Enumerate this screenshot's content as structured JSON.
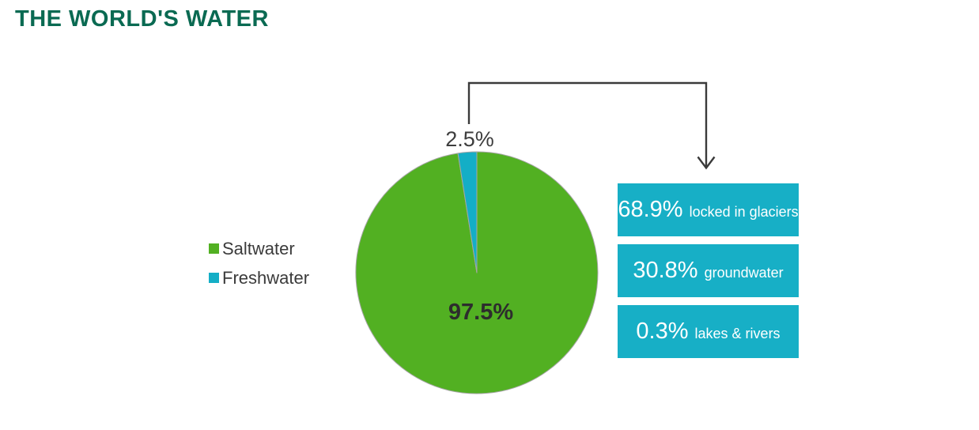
{
  "title": {
    "text": "THE WORLD'S WATER",
    "color": "#0a6a52"
  },
  "chart_data": {
    "type": "pie",
    "title": "THE WORLD'S WATER",
    "series": [
      {
        "name": "Saltwater",
        "value": 97.5,
        "data_label": "97.5%",
        "color": "#52b022"
      },
      {
        "name": "Freshwater",
        "value": 2.5,
        "data_label": "2.5%",
        "color": "#14aec6"
      }
    ],
    "start_angle_deg": 0,
    "direction": "clockwise",
    "legend": {
      "position": "left",
      "entries": [
        "Saltwater",
        "Freshwater"
      ]
    },
    "outline_color": "#a6a6a6",
    "breakdown": {
      "parent": "Freshwater",
      "box_color": "#17afc6",
      "text_color": "#ffffff",
      "items": [
        {
          "pct": "68.9%",
          "label": "locked in glaciers"
        },
        {
          "pct": "30.8%",
          "label": "groundwater"
        },
        {
          "pct": "0.3%",
          "label": "lakes & rivers"
        }
      ]
    },
    "connector_color": "#3a3a3a"
  }
}
